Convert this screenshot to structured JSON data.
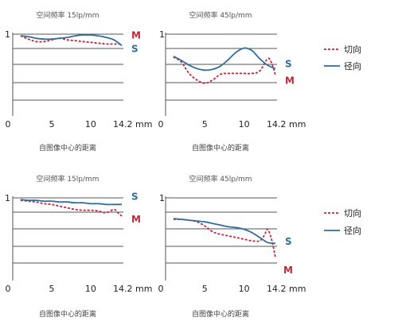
{
  "colors": {
    "tangential": "#c0283a",
    "sagittal": "#2f6d9a",
    "grid": "#555555"
  },
  "legend": {
    "tangential": "切向",
    "sagittal": "径向"
  },
  "chart_data": [
    {
      "type": "line",
      "title": "空间频率 15lp/mm",
      "xlabel": "自图像中心的距离",
      "xticks": [
        "0",
        "5",
        "10",
        "14.2 mm"
      ],
      "yticks": [
        "1"
      ],
      "xlim": [
        0,
        14.2
      ],
      "ylim": [
        0,
        1
      ],
      "series": [
        {
          "key": "tangential",
          "label": "M",
          "x": [
            1,
            2,
            3,
            4,
            5,
            6,
            7,
            8,
            9,
            10,
            11,
            12,
            13,
            14
          ],
          "y": [
            0.98,
            0.94,
            0.91,
            0.91,
            0.93,
            0.95,
            0.93,
            0.92,
            0.91,
            0.9,
            0.89,
            0.88,
            0.88,
            0.88
          ]
        },
        {
          "key": "sagittal",
          "label": "S",
          "x": [
            1,
            2,
            3,
            4,
            5,
            6,
            7,
            8,
            9,
            10,
            11,
            12,
            13,
            14
          ],
          "y": [
            0.98,
            0.97,
            0.95,
            0.94,
            0.94,
            0.95,
            0.96,
            0.98,
            0.99,
            0.99,
            0.98,
            0.96,
            0.93,
            0.86
          ]
        }
      ]
    },
    {
      "type": "line",
      "title": "空间频率 45lp/mm",
      "xlabel": "自图像中心的距离",
      "xticks": [
        "0",
        "5",
        "10",
        "14.2 mm"
      ],
      "yticks": [
        "1"
      ],
      "xlim": [
        0,
        14.2
      ],
      "ylim": [
        0,
        1
      ],
      "series": [
        {
          "key": "tangential",
          "label": "M",
          "x": [
            1,
            2,
            3,
            4,
            5,
            6,
            7,
            8,
            9,
            10,
            11,
            12,
            13,
            13.5,
            14
          ],
          "y": [
            0.72,
            0.66,
            0.52,
            0.44,
            0.4,
            0.44,
            0.51,
            0.52,
            0.52,
            0.52,
            0.52,
            0.55,
            0.7,
            0.65,
            0.5
          ]
        },
        {
          "key": "sagittal",
          "label": "S",
          "x": [
            1,
            2,
            3,
            4,
            5,
            6,
            7,
            8,
            9,
            10,
            11,
            12,
            13,
            14
          ],
          "y": [
            0.73,
            0.68,
            0.62,
            0.58,
            0.56,
            0.57,
            0.61,
            0.69,
            0.78,
            0.83,
            0.8,
            0.7,
            0.62,
            0.58
          ]
        }
      ]
    },
    {
      "type": "line",
      "title": "空间频率 15lp/mm",
      "xlabel": "自图像中心的距离",
      "xticks": [
        "0",
        "5",
        "10",
        "14.2 mm"
      ],
      "yticks": [
        "1"
      ],
      "xlim": [
        0,
        14.2
      ],
      "ylim": [
        0,
        1
      ],
      "series": [
        {
          "key": "tangential",
          "label": "M",
          "x": [
            1,
            2,
            3,
            4,
            5,
            6,
            7,
            8,
            9,
            10,
            11,
            12,
            13,
            13.5,
            14
          ],
          "y": [
            0.97,
            0.96,
            0.95,
            0.93,
            0.92,
            0.9,
            0.88,
            0.86,
            0.85,
            0.85,
            0.84,
            0.82,
            0.86,
            0.82,
            0.78
          ]
        },
        {
          "key": "sagittal",
          "label": "S",
          "x": [
            1,
            2,
            3,
            4,
            5,
            6,
            7,
            8,
            9,
            10,
            11,
            12,
            13,
            14
          ],
          "y": [
            0.98,
            0.97,
            0.97,
            0.96,
            0.96,
            0.95,
            0.95,
            0.94,
            0.94,
            0.93,
            0.93,
            0.92,
            0.92,
            0.92
          ]
        }
      ]
    },
    {
      "type": "line",
      "title": "空间频率 45lp/mm",
      "xlabel": "自图像中心的距离",
      "xticks": [
        "0",
        "5",
        "10",
        "14.2 mm"
      ],
      "yticks": [
        "1"
      ],
      "xlim": [
        0,
        14.2
      ],
      "ylim": [
        0,
        1
      ],
      "series": [
        {
          "key": "tangential",
          "label": "M",
          "x": [
            1,
            2,
            3,
            4,
            5,
            6,
            7,
            8,
            9,
            10,
            11,
            12,
            12.6,
            13,
            13.5,
            14
          ],
          "y": [
            0.74,
            0.74,
            0.73,
            0.71,
            0.66,
            0.59,
            0.56,
            0.54,
            0.52,
            0.5,
            0.48,
            0.48,
            0.55,
            0.62,
            0.5,
            0.28
          ]
        },
        {
          "key": "sagittal",
          "label": "S",
          "x": [
            1,
            2,
            3,
            4,
            5,
            6,
            7,
            8,
            9,
            10,
            11,
            12,
            13,
            14
          ],
          "y": [
            0.75,
            0.74,
            0.73,
            0.72,
            0.71,
            0.69,
            0.67,
            0.65,
            0.64,
            0.62,
            0.58,
            0.52,
            0.46,
            0.45
          ]
        }
      ]
    }
  ]
}
